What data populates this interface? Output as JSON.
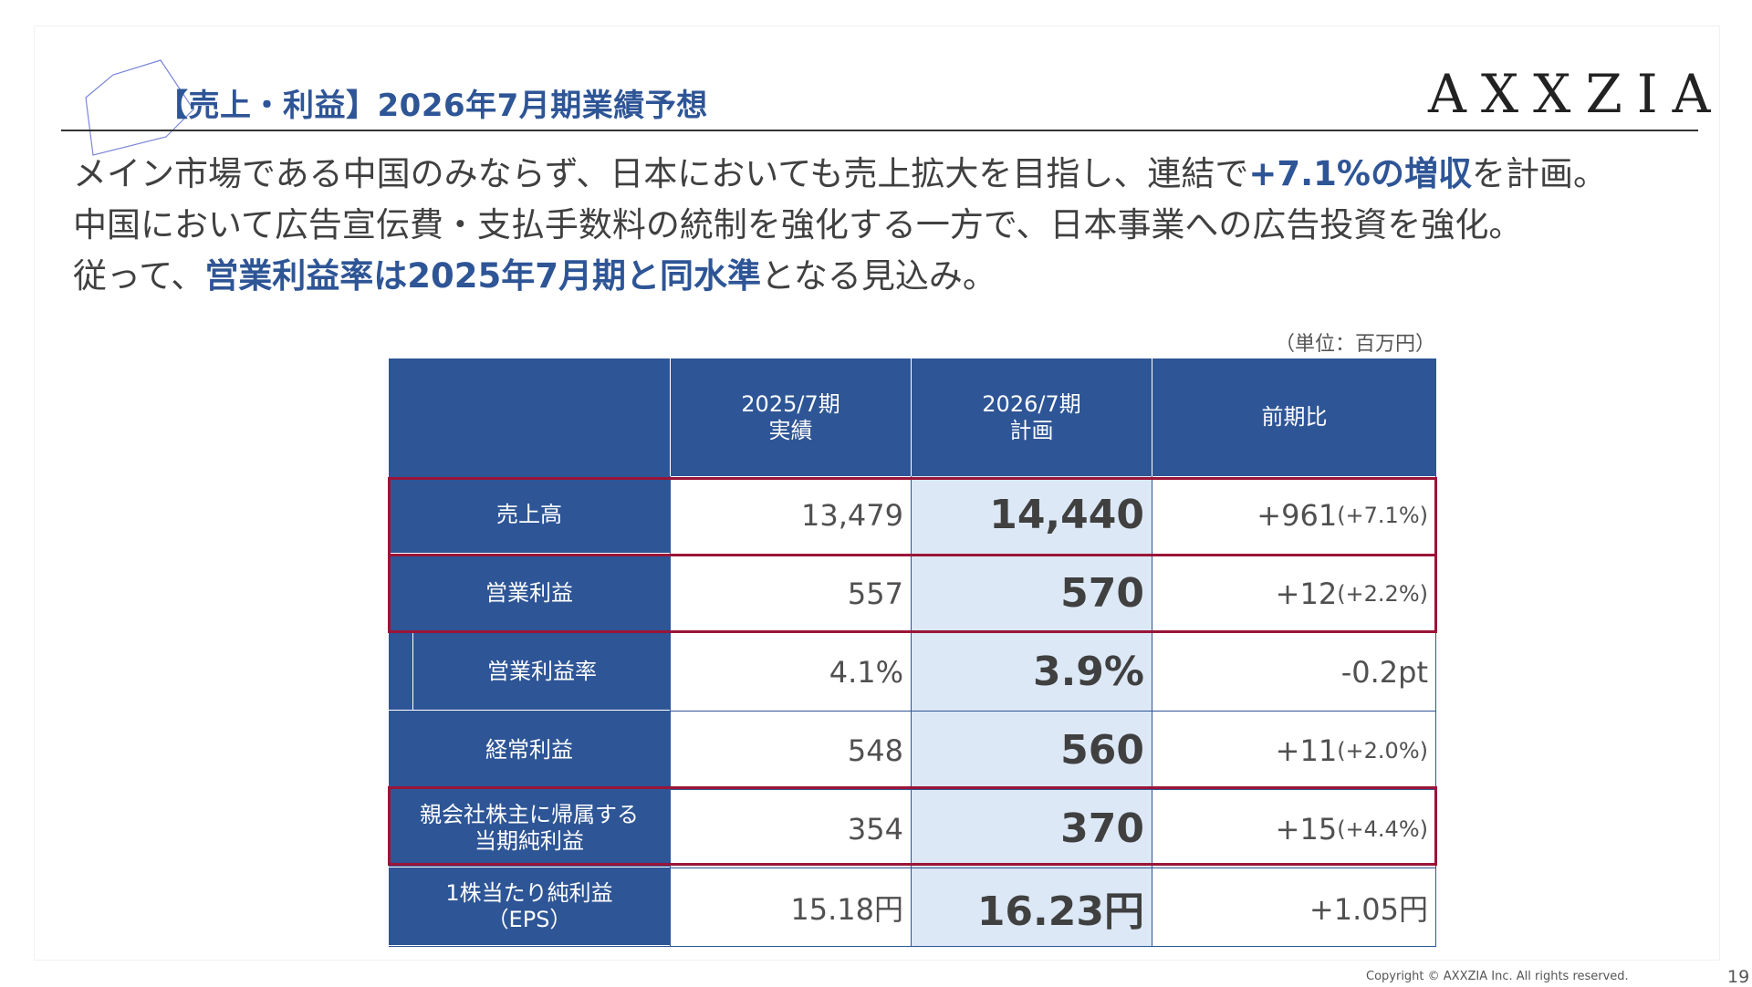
{
  "slide": {
    "title": "【売上・利益】2026年7月期業績予想",
    "logo": "AXXZIA",
    "lead": {
      "line1_a": "メイン市場である中国のみならず、日本においても売上拡大を目指し、連結で",
      "line1_hl": "+7.1%の増収",
      "line1_b": "を計画。",
      "line2": "中国において広告宣伝費・支払手数料の統制を強化する一方で、日本事業への広告投資を強化。",
      "line3_a": "従って、",
      "line3_hl": "営業利益率は2025年7月期と同水準",
      "line3_b": "となる見込み。"
    },
    "unit_note": "（単位：百万円）",
    "footer": {
      "copyright": "Copyright © AXXZIA Inc. All rights reserved.",
      "page_number": "19"
    },
    "colors": {
      "brand_blue": "#2e5596",
      "plan_column_bg": "#dce8f5",
      "highlight_box": "#9a1538"
    }
  },
  "table": {
    "headers": {
      "col1_line1": "2025/7期",
      "col1_line2": "実績",
      "col2_line1": "2026/7期",
      "col2_line2": "計画",
      "col3": "前期比"
    },
    "rows": [
      {
        "label": "売上高",
        "label2": "",
        "actual": "13,479",
        "plan": "14,440",
        "diff": "+961",
        "diff_pct": "(+7.1%)",
        "highlighted": true
      },
      {
        "label": "営業利益",
        "label2": "",
        "actual": "557",
        "plan": "570",
        "diff": "+12",
        "diff_pct": "(+2.2%)",
        "highlighted": true
      },
      {
        "label": "営業利益率",
        "label2": "",
        "actual": "4.1%",
        "plan": "3.9%",
        "diff": "-0.2pt",
        "diff_pct": "",
        "highlighted": false
      },
      {
        "label": "経常利益",
        "label2": "",
        "actual": "548",
        "plan": "560",
        "diff": "+11",
        "diff_pct": "(+2.0%)",
        "highlighted": false
      },
      {
        "label": "親会社株主に帰属する",
        "label2": "当期純利益",
        "actual": "354",
        "plan": "370",
        "diff": "+15",
        "diff_pct": "(+4.4%)",
        "highlighted": true
      },
      {
        "label": "1株当たり純利益",
        "label2": "（EPS）",
        "actual": "15.18円",
        "plan": "16.23円",
        "diff": "+1.05円",
        "diff_pct": "",
        "highlighted": false
      }
    ]
  }
}
